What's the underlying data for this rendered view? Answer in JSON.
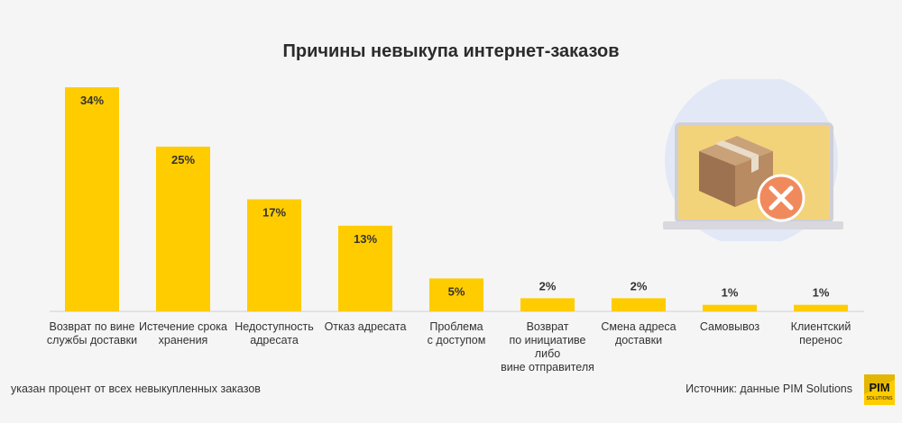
{
  "title": "Причины невыкупа интернет-заказов",
  "footnote": "указан процент от всех невыкупленных заказов",
  "source": "Источник: данные PIM Solutions",
  "logo": {
    "text": "PIM",
    "subtext": "SOLUTIONS"
  },
  "colors": {
    "bar": "#FFCC00",
    "axis": "#cfcfcf",
    "label": "#333333",
    "circle": "#e3e8f7",
    "cancel": "#F08A5D"
  },
  "chart_data": {
    "type": "bar",
    "title": "Причины невыкупа интернет-заказов",
    "xlabel": "",
    "ylabel": "",
    "ylim": [
      0,
      34
    ],
    "categories": [
      "Возврат по вине\nслужбы доставки",
      "Истечение срока\nхранения",
      "Недоступность\nадресата",
      "Отказ адресата",
      "Проблема\nс доступом",
      "Возврат\nпо инициативе либо\nвине отправителя",
      "Смена адреса\nдоставки",
      "Самовывоз",
      "Клиентский\nперенос"
    ],
    "values": [
      34,
      25,
      17,
      13,
      5,
      2,
      2,
      1,
      1
    ],
    "value_labels": [
      "34%",
      "25%",
      "17%",
      "13%",
      "5%",
      "2%",
      "2%",
      "1%",
      "1%"
    ]
  }
}
